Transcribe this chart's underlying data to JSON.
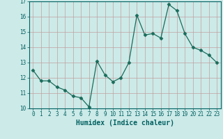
{
  "x": [
    0,
    1,
    2,
    3,
    4,
    5,
    6,
    7,
    8,
    9,
    10,
    11,
    12,
    13,
    14,
    15,
    16,
    17,
    18,
    19,
    20,
    21,
    22,
    23
  ],
  "y": [
    12.5,
    11.8,
    11.8,
    11.4,
    11.2,
    10.8,
    10.7,
    10.1,
    13.1,
    12.2,
    11.75,
    12.0,
    13.0,
    16.1,
    14.8,
    14.9,
    14.6,
    16.8,
    16.4,
    14.9,
    14.0,
    13.8,
    13.5,
    13.0
  ],
  "line_color": "#1a6b5a",
  "marker": "D",
  "marker_size": 2.5,
  "bg_color": "#cceae8",
  "grid_color": "#c0a0a0",
  "xlabel": "Humidex (Indice chaleur)",
  "ylim": [
    10,
    17
  ],
  "yticks": [
    10,
    11,
    12,
    13,
    14,
    15,
    16,
    17
  ],
  "xticks": [
    0,
    1,
    2,
    3,
    4,
    5,
    6,
    7,
    8,
    9,
    10,
    11,
    12,
    13,
    14,
    15,
    16,
    17,
    18,
    19,
    20,
    21,
    22,
    23
  ],
  "tick_fontsize": 5.5,
  "xlabel_fontsize": 7,
  "xlabel_color": "#006060",
  "spine_color": "#006060"
}
